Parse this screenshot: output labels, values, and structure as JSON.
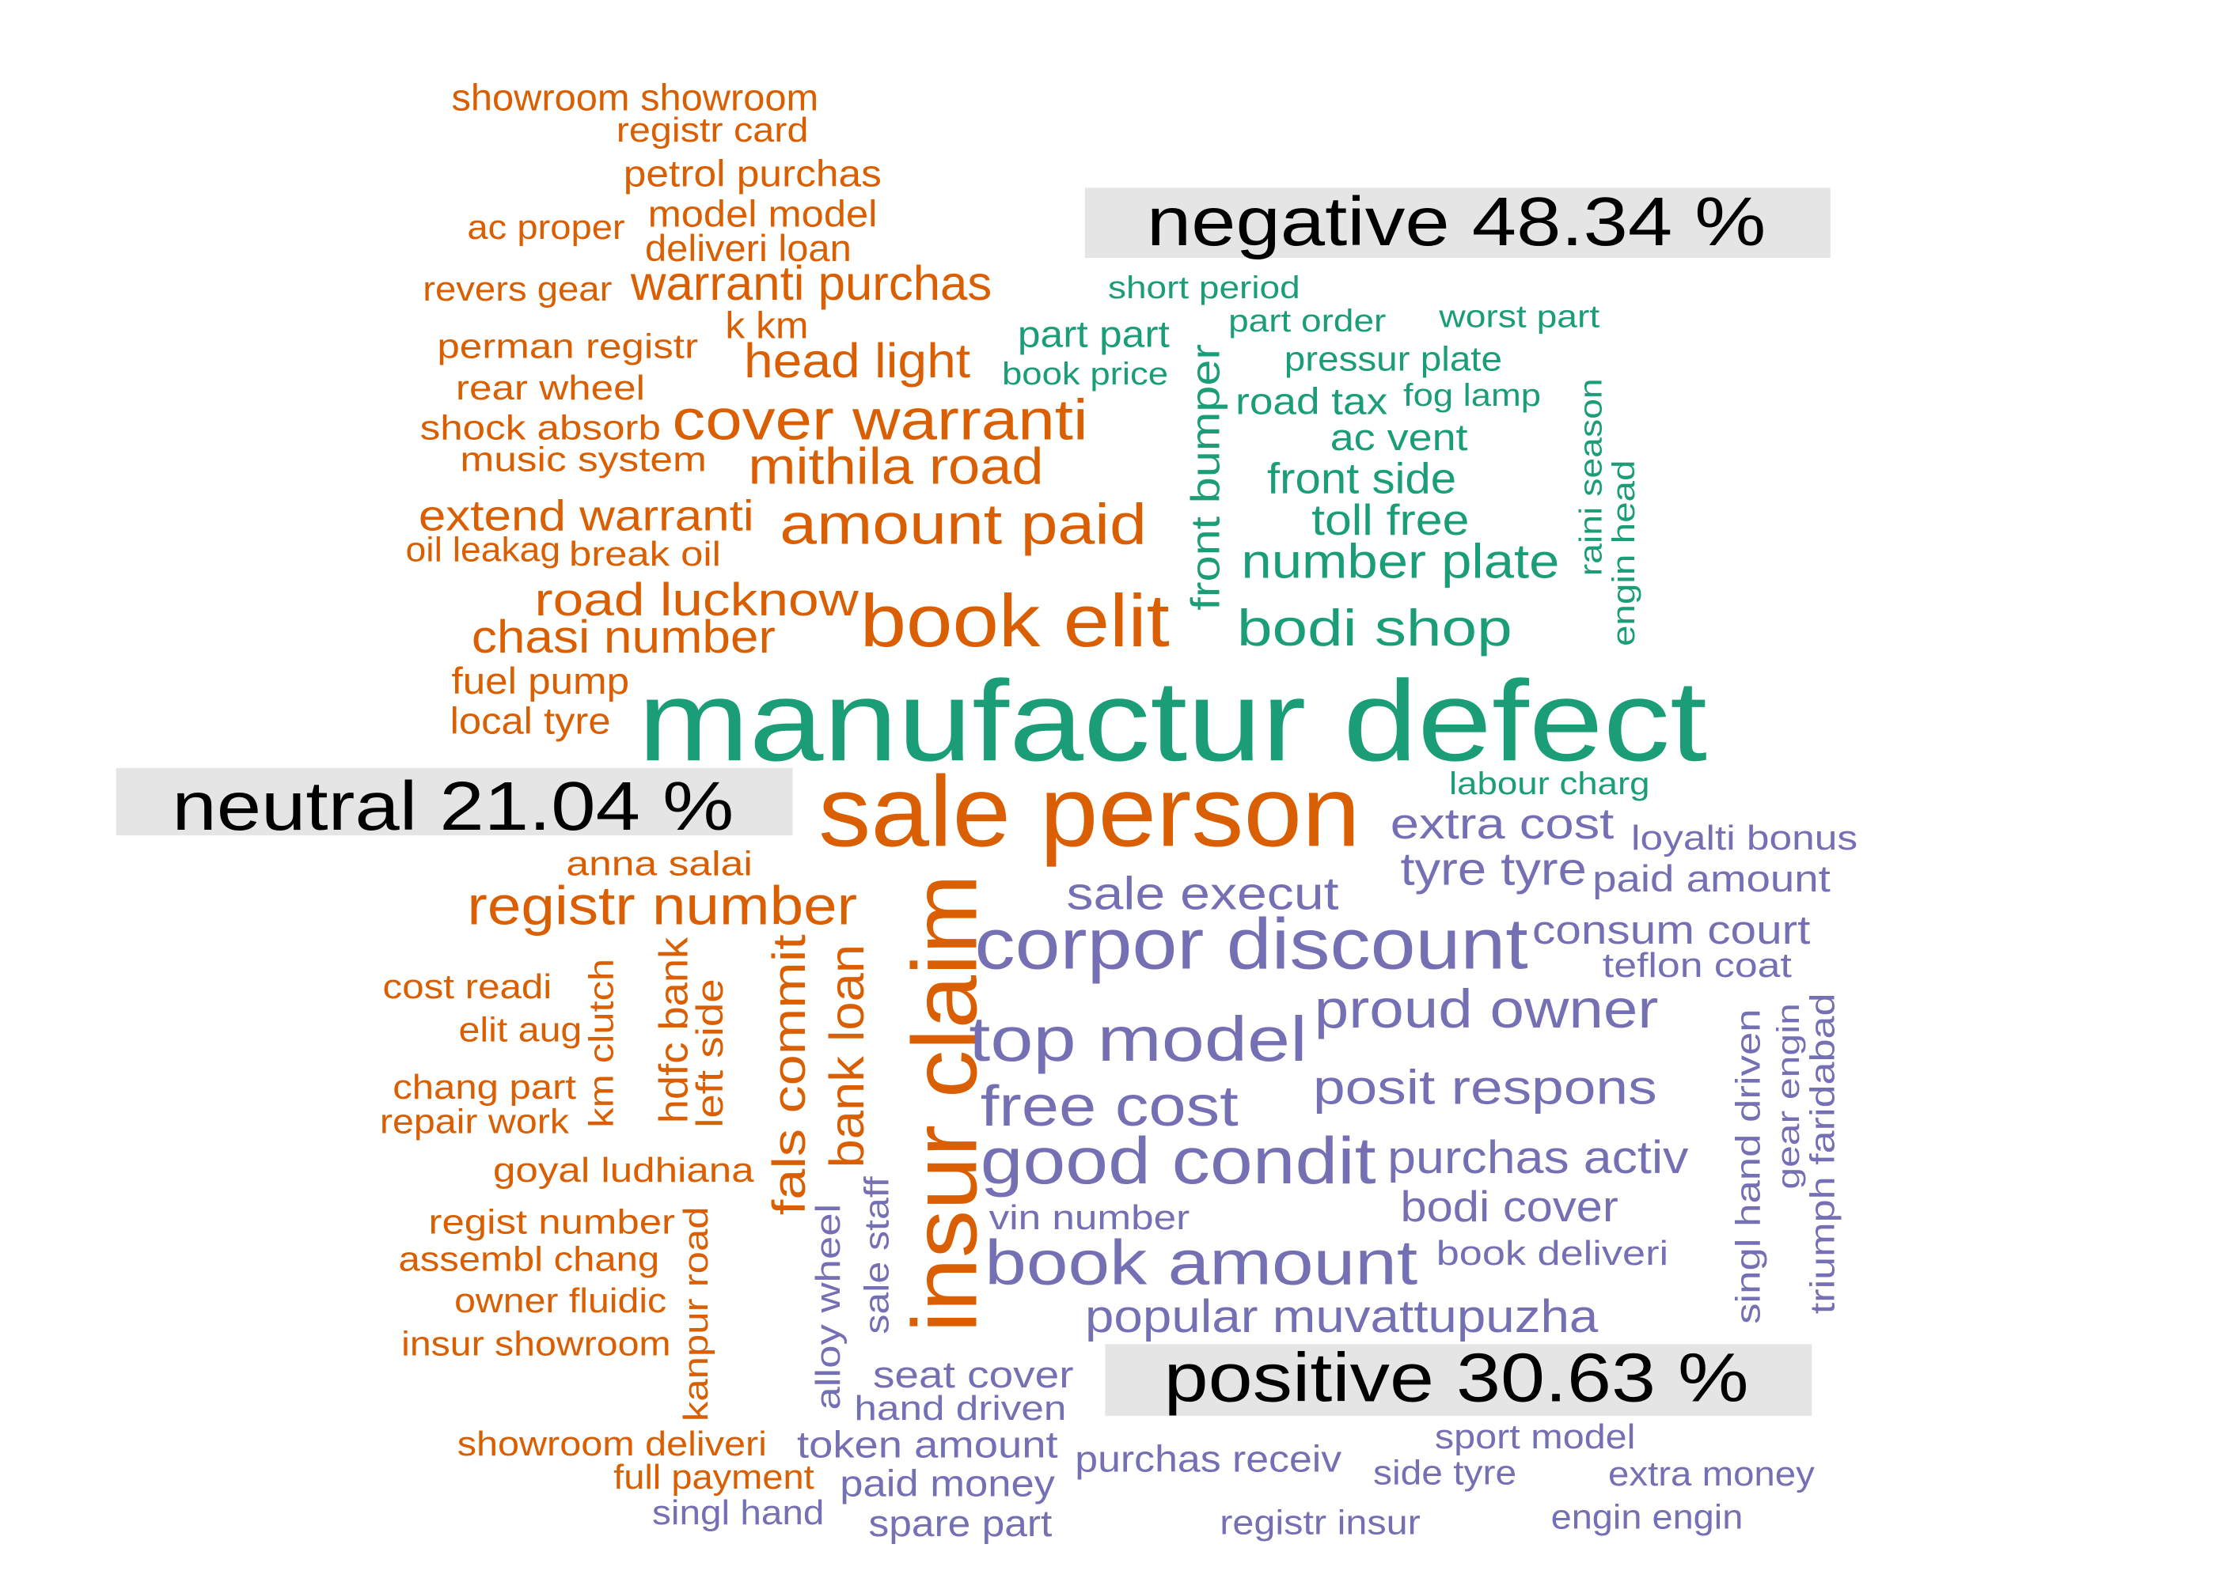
{
  "colors": {
    "negative": "#1b9e77",
    "neutral": "#d95f02",
    "positive": "#7570b3",
    "label_background": "#e5e5e5",
    "label_text": "#000000"
  },
  "labels": {
    "negative": "negative 48.34 %",
    "neutral": "neutral 21.04 %",
    "positive": "positive 30.63 %"
  },
  "words": [
    {
      "t": "showroom showroom",
      "c": "neutral"
    },
    {
      "t": "registr card",
      "c": "neutral"
    },
    {
      "t": "petrol purchas",
      "c": "neutral"
    },
    {
      "t": "ac proper",
      "c": "neutral"
    },
    {
      "t": "model model",
      "c": "neutral"
    },
    {
      "t": "deliveri loan",
      "c": "neutral"
    },
    {
      "t": "revers gear",
      "c": "neutral"
    },
    {
      "t": "warranti purchas",
      "c": "neutral"
    },
    {
      "t": "k km",
      "c": "neutral"
    },
    {
      "t": "perman registr",
      "c": "neutral"
    },
    {
      "t": "head light",
      "c": "neutral"
    },
    {
      "t": "rear wheel",
      "c": "neutral"
    },
    {
      "t": "shock absorb",
      "c": "neutral"
    },
    {
      "t": "cover warranti",
      "c": "neutral"
    },
    {
      "t": "music system",
      "c": "neutral"
    },
    {
      "t": "mithila road",
      "c": "neutral"
    },
    {
      "t": "extend warranti",
      "c": "neutral"
    },
    {
      "t": "amount paid",
      "c": "neutral"
    },
    {
      "t": "oil leakag",
      "c": "neutral"
    },
    {
      "t": "break oil",
      "c": "neutral"
    },
    {
      "t": "road lucknow",
      "c": "neutral"
    },
    {
      "t": "book elit",
      "c": "neutral"
    },
    {
      "t": "chasi number",
      "c": "neutral"
    },
    {
      "t": "fuel pump",
      "c": "neutral"
    },
    {
      "t": "local tyre",
      "c": "neutral"
    },
    {
      "t": "sale person",
      "c": "neutral"
    },
    {
      "t": "anna salai",
      "c": "neutral"
    },
    {
      "t": "registr number",
      "c": "neutral"
    },
    {
      "t": "cost readi",
      "c": "neutral"
    },
    {
      "t": "elit aug",
      "c": "neutral"
    },
    {
      "t": "km clutch",
      "c": "neutral"
    },
    {
      "t": "hdfc bank",
      "c": "neutral"
    },
    {
      "t": "left side",
      "c": "neutral"
    },
    {
      "t": "fals commit",
      "c": "neutral"
    },
    {
      "t": "bank loan",
      "c": "neutral"
    },
    {
      "t": "insur claim",
      "c": "neutral"
    },
    {
      "t": "chang part",
      "c": "neutral"
    },
    {
      "t": "repair work",
      "c": "neutral"
    },
    {
      "t": "goyal ludhiana",
      "c": "neutral"
    },
    {
      "t": "regist number",
      "c": "neutral"
    },
    {
      "t": "assembl chang",
      "c": "neutral"
    },
    {
      "t": "owner fluidic",
      "c": "neutral"
    },
    {
      "t": "insur showroom",
      "c": "neutral"
    },
    {
      "t": "kanpur road",
      "c": "neutral"
    },
    {
      "t": "showroom deliveri",
      "c": "neutral"
    },
    {
      "t": "full payment",
      "c": "neutral"
    },
    {
      "t": "short period",
      "c": "negative"
    },
    {
      "t": "part order",
      "c": "negative"
    },
    {
      "t": "worst part",
      "c": "negative"
    },
    {
      "t": "part part",
      "c": "negative"
    },
    {
      "t": "pressur plate",
      "c": "negative"
    },
    {
      "t": "book price",
      "c": "negative"
    },
    {
      "t": "road tax",
      "c": "negative"
    },
    {
      "t": "fog lamp",
      "c": "negative"
    },
    {
      "t": "ac vent",
      "c": "negative"
    },
    {
      "t": "front bumper",
      "c": "negative"
    },
    {
      "t": "front side",
      "c": "negative"
    },
    {
      "t": "raini season",
      "c": "negative"
    },
    {
      "t": "engin head",
      "c": "negative"
    },
    {
      "t": "toll free",
      "c": "negative"
    },
    {
      "t": "number plate",
      "c": "negative"
    },
    {
      "t": "bodi shop",
      "c": "negative"
    },
    {
      "t": "manufactur defect",
      "c": "negative"
    },
    {
      "t": "labour charg",
      "c": "negative"
    },
    {
      "t": "extra cost",
      "c": "positive"
    },
    {
      "t": "loyalti bonus",
      "c": "positive"
    },
    {
      "t": "tyre tyre",
      "c": "positive"
    },
    {
      "t": "paid amount",
      "c": "positive"
    },
    {
      "t": "sale execut",
      "c": "positive"
    },
    {
      "t": "consum court",
      "c": "positive"
    },
    {
      "t": "corpor discount",
      "c": "positive"
    },
    {
      "t": "teflon coat",
      "c": "positive"
    },
    {
      "t": "proud owner",
      "c": "positive"
    },
    {
      "t": "top model",
      "c": "positive"
    },
    {
      "t": "singl hand driven",
      "c": "positive"
    },
    {
      "t": "gear engin",
      "c": "positive"
    },
    {
      "t": "triumph faridabad",
      "c": "positive"
    },
    {
      "t": "posit respons",
      "c": "positive"
    },
    {
      "t": "free cost",
      "c": "positive"
    },
    {
      "t": "purchas activ",
      "c": "positive"
    },
    {
      "t": "good condit",
      "c": "positive"
    },
    {
      "t": "bodi cover",
      "c": "positive"
    },
    {
      "t": "vin number",
      "c": "positive"
    },
    {
      "t": "book deliveri",
      "c": "positive"
    },
    {
      "t": "book amount",
      "c": "positive"
    },
    {
      "t": "sale staff",
      "c": "positive"
    },
    {
      "t": "alloy wheel",
      "c": "positive"
    },
    {
      "t": "popular muvattupuzha",
      "c": "positive"
    },
    {
      "t": "seat cover",
      "c": "positive"
    },
    {
      "t": "hand driven",
      "c": "positive"
    },
    {
      "t": "token amount",
      "c": "positive"
    },
    {
      "t": "sport model",
      "c": "positive"
    },
    {
      "t": "purchas receiv",
      "c": "positive"
    },
    {
      "t": "side tyre",
      "c": "positive"
    },
    {
      "t": "extra money",
      "c": "positive"
    },
    {
      "t": "paid money",
      "c": "positive"
    },
    {
      "t": "singl hand",
      "c": "positive"
    },
    {
      "t": "spare part",
      "c": "positive"
    },
    {
      "t": "registr insur",
      "c": "positive"
    },
    {
      "t": "engin engin",
      "c": "positive"
    }
  ]
}
